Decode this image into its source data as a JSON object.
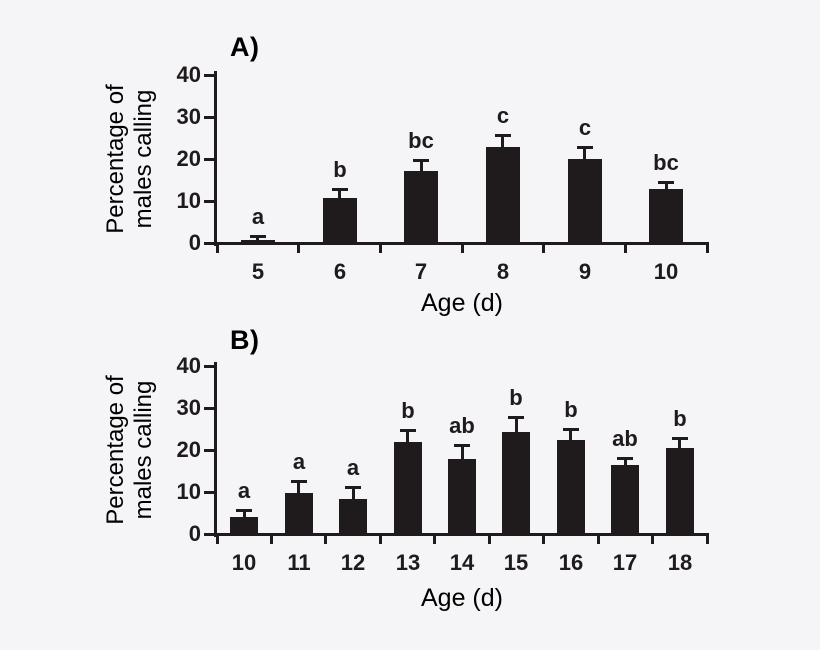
{
  "figure": {
    "background_color": "#f5f4f6",
    "ink_color": "#1f1b1c"
  },
  "chart_data": [
    {
      "type": "bar",
      "panel_label": "A)",
      "xlabel": "Age (d)",
      "ylabel_line1": "Percentage of",
      "ylabel_line2": "males calling",
      "categories": [
        "5",
        "6",
        "7",
        "8",
        "9",
        "10"
      ],
      "values": [
        0.8,
        10.6,
        17.1,
        22.8,
        20.1,
        12.8
      ],
      "errors": [
        0.8,
        2.3,
        2.7,
        2.8,
        2.7,
        1.8
      ],
      "sig_letters": [
        "a",
        "b",
        "bc",
        "c",
        "c",
        "bc"
      ],
      "bar_color": "#1f1b1c",
      "ylim": [
        0,
        40
      ],
      "yticks": [
        0,
        10,
        20,
        30,
        40
      ],
      "grid": false,
      "legend": null
    },
    {
      "type": "bar",
      "panel_label": "B)",
      "xlabel": "Age (d)",
      "ylabel_line1": "Percentage of",
      "ylabel_line2": "males calling",
      "categories": [
        "10",
        "11",
        "12",
        "13",
        "14",
        "15",
        "16",
        "17",
        "18"
      ],
      "values": [
        4.0,
        9.8,
        8.3,
        21.9,
        17.9,
        24.3,
        22.3,
        16.4,
        20.4
      ],
      "errors": [
        1.7,
        2.8,
        3.0,
        2.9,
        3.3,
        3.6,
        2.8,
        1.7,
        2.4
      ],
      "sig_letters": [
        "a",
        "a",
        "a",
        "b",
        "ab",
        "b",
        "b",
        "ab",
        "b"
      ],
      "bar_color": "#1f1b1c",
      "ylim": [
        0,
        40
      ],
      "yticks": [
        0,
        10,
        20,
        30,
        40
      ],
      "grid": false,
      "legend": null
    }
  ]
}
